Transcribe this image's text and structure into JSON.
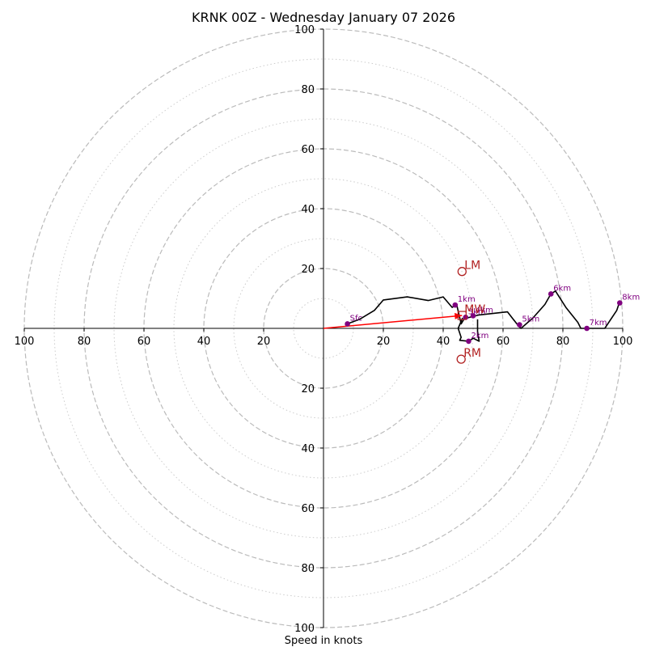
{
  "chart_data": {
    "type": "scatter",
    "title": "KRNK 00Z - Wednesday January 07 2026",
    "xlabel": "Speed in knots",
    "ylabel": "",
    "xlim": [
      -100,
      100
    ],
    "ylim": [
      -100,
      100
    ],
    "ring_step": 20,
    "ring_minor_step": 10,
    "x_tick_labels": [
      "100",
      "80",
      "60",
      "40",
      "20",
      "20",
      "40",
      "60",
      "80",
      "100"
    ],
    "y_tick_labels": [
      "100",
      "80",
      "60",
      "40",
      "20",
      "20",
      "40",
      "60",
      "80",
      "100"
    ],
    "hodograph": {
      "color": "#000000",
      "points": [
        [
          8,
          1.5
        ],
        [
          12,
          3
        ],
        [
          17,
          6
        ],
        [
          20,
          9.5
        ],
        [
          28,
          10.5
        ],
        [
          35,
          9.3
        ],
        [
          40,
          10.5
        ],
        [
          43,
          7
        ],
        [
          44.5,
          8
        ],
        [
          46,
          1.5
        ],
        [
          47.5,
          4
        ],
        [
          48,
          3.5
        ],
        [
          52,
          4.5
        ],
        [
          61.5,
          5.5
        ],
        [
          65,
          1
        ],
        [
          66,
          0
        ],
        [
          70,
          3.5
        ],
        [
          74,
          8
        ],
        [
          76,
          11.5
        ],
        [
          77.5,
          12.5
        ],
        [
          81,
          7
        ],
        [
          85,
          2
        ],
        [
          86,
          0
        ],
        [
          94,
          0
        ],
        [
          98,
          6
        ],
        [
          99,
          9
        ]
      ],
      "low_loop": [
        [
          46.5,
          3.5
        ],
        [
          45,
          0
        ],
        [
          46,
          -3
        ],
        [
          45.5,
          -4
        ],
        [
          48.5,
          -4.3
        ],
        [
          50,
          -3.3
        ],
        [
          52,
          -4.3
        ],
        [
          51.5,
          -1
        ],
        [
          51.5,
          3
        ]
      ]
    },
    "height_markers": {
      "color": "#800080",
      "points": [
        {
          "label": "Sfc",
          "x": 8,
          "y": 1.5
        },
        {
          "label": "1km",
          "x": 44,
          "y": 7.8
        },
        {
          "label": "2km",
          "x": 48.5,
          "y": -4.3
        },
        {
          "label": "3km",
          "x": 47.5,
          "y": 3.7
        },
        {
          "label": "4km",
          "x": 50,
          "y": 4.2
        },
        {
          "label": "5km",
          "x": 65.5,
          "y": 1.2
        },
        {
          "label": "6km",
          "x": 76,
          "y": 11.5
        },
        {
          "label": "7km",
          "x": 88,
          "y": 0
        },
        {
          "label": "8km",
          "x": 99,
          "y": 8.5
        }
      ]
    },
    "storm_motion": {
      "color": "#b22222",
      "points": [
        {
          "label": "LM",
          "x": 46.3,
          "y": 19
        },
        {
          "label": "RM",
          "x": 46,
          "y": -10.3
        },
        {
          "label": "MW",
          "x": 46.3,
          "y": 4.3
        }
      ]
    },
    "shear_vector": {
      "color": "#ff0000",
      "from": [
        0,
        0
      ],
      "to": [
        46.3,
        4.3
      ]
    }
  }
}
